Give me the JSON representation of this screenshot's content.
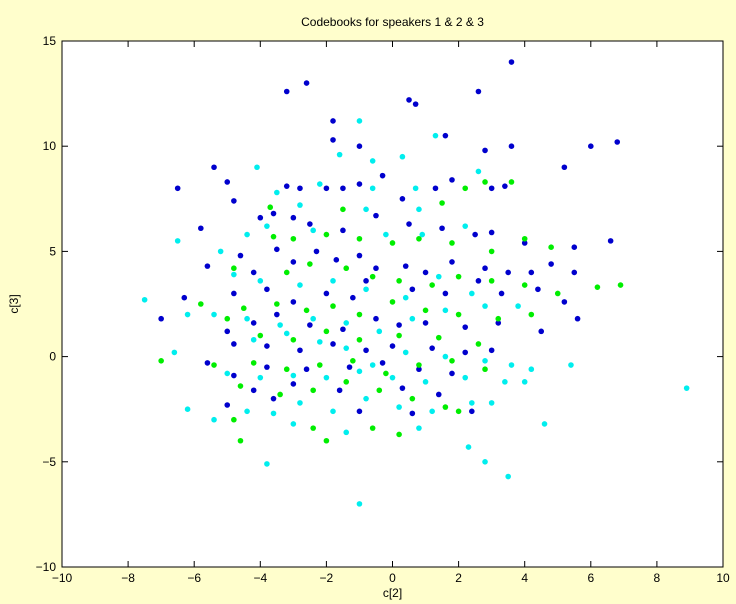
{
  "chart_data": {
    "type": "scatter",
    "title": "Codebooks for speakers 1 & 2 & 3",
    "xlabel": "c[2]",
    "ylabel": "c[3]",
    "xlim": [
      -10,
      10
    ],
    "ylim": [
      -10,
      15
    ],
    "xticks": [
      -10,
      -8,
      -6,
      -4,
      -2,
      0,
      2,
      4,
      6,
      8,
      10
    ],
    "yticks": [
      -10,
      -5,
      0,
      5,
      10,
      15
    ],
    "grid": false,
    "legend": "none",
    "series": [
      {
        "color": "#0000cd",
        "points": [
          [
            -3.2,
            12.6
          ],
          [
            -2.6,
            13.0
          ],
          [
            -1.8,
            11.2
          ],
          [
            0.5,
            12.2
          ],
          [
            0.7,
            12.0
          ],
          [
            2.6,
            12.6
          ],
          [
            3.6,
            14.0
          ],
          [
            -5.4,
            9.0
          ],
          [
            -6.5,
            8.0
          ],
          [
            -1.8,
            10.3
          ],
          [
            -1.0,
            10.0
          ],
          [
            1.6,
            10.5
          ],
          [
            2.8,
            9.8
          ],
          [
            3.6,
            10.0
          ],
          [
            5.2,
            9.0
          ],
          [
            6.0,
            10.0
          ],
          [
            6.8,
            10.2
          ],
          [
            -5.0,
            8.3
          ],
          [
            -4.8,
            7.4
          ],
          [
            -3.2,
            8.1
          ],
          [
            -2.8,
            8.0
          ],
          [
            -2.0,
            8.0
          ],
          [
            -1.5,
            8.0
          ],
          [
            -1.0,
            8.2
          ],
          [
            -0.3,
            8.6
          ],
          [
            0.3,
            7.5
          ],
          [
            1.3,
            8.0
          ],
          [
            1.8,
            8.4
          ],
          [
            3.0,
            8.0
          ],
          [
            3.4,
            8.1
          ],
          [
            -5.8,
            6.1
          ],
          [
            -4.0,
            6.6
          ],
          [
            -3.6,
            6.8
          ],
          [
            -3.0,
            6.6
          ],
          [
            -2.5,
            6.3
          ],
          [
            -1.5,
            6.0
          ],
          [
            -0.5,
            6.7
          ],
          [
            0.5,
            6.3
          ],
          [
            1.5,
            6.1
          ],
          [
            2.5,
            5.8
          ],
          [
            3.0,
            5.9
          ],
          [
            4.0,
            5.4
          ],
          [
            5.5,
            5.2
          ],
          [
            6.6,
            5.5
          ],
          [
            -5.6,
            4.3
          ],
          [
            -4.6,
            4.8
          ],
          [
            -4.2,
            4.0
          ],
          [
            -3.5,
            5.1
          ],
          [
            -3.0,
            4.5
          ],
          [
            -2.3,
            5.0
          ],
          [
            -1.7,
            4.6
          ],
          [
            -1.0,
            4.8
          ],
          [
            -0.5,
            4.2
          ],
          [
            0.4,
            4.3
          ],
          [
            1.0,
            4.0
          ],
          [
            1.8,
            4.5
          ],
          [
            2.8,
            4.2
          ],
          [
            3.5,
            4.0
          ],
          [
            4.2,
            4.0
          ],
          [
            4.8,
            4.4
          ],
          [
            5.5,
            4.0
          ],
          [
            -6.3,
            2.8
          ],
          [
            -4.8,
            3.0
          ],
          [
            -3.8,
            3.2
          ],
          [
            -3.0,
            2.6
          ],
          [
            -2.0,
            3.0
          ],
          [
            -1.2,
            2.8
          ],
          [
            -0.8,
            3.6
          ],
          [
            0.6,
            3.2
          ],
          [
            1.6,
            3.0
          ],
          [
            2.6,
            3.6
          ],
          [
            3.3,
            3.0
          ],
          [
            4.4,
            3.2
          ],
          [
            5.2,
            2.6
          ],
          [
            -7.0,
            1.8
          ],
          [
            -5.0,
            1.2
          ],
          [
            -4.2,
            1.6
          ],
          [
            -3.5,
            2.0
          ],
          [
            -2.5,
            1.5
          ],
          [
            -1.5,
            1.3
          ],
          [
            -0.5,
            1.8
          ],
          [
            0.2,
            1.5
          ],
          [
            1.0,
            1.6
          ],
          [
            2.2,
            1.4
          ],
          [
            3.2,
            1.6
          ],
          [
            4.5,
            1.2
          ],
          [
            5.6,
            1.8
          ],
          [
            -4.8,
            0.6
          ],
          [
            -3.8,
            0.5
          ],
          [
            -2.8,
            0.3
          ],
          [
            -1.8,
            0.6
          ],
          [
            -0.8,
            0.3
          ],
          [
            0.0,
            0.5
          ],
          [
            1.2,
            0.4
          ],
          [
            2.2,
            0.2
          ],
          [
            3.0,
            0.3
          ],
          [
            -5.6,
            -0.3
          ],
          [
            -4.8,
            -0.9
          ],
          [
            -3.8,
            -0.5
          ],
          [
            -2.6,
            -0.6
          ],
          [
            -1.3,
            -0.5
          ],
          [
            -0.3,
            -0.3
          ],
          [
            0.8,
            -0.6
          ],
          [
            1.8,
            -0.8
          ],
          [
            -4.2,
            -1.6
          ],
          [
            -3.0,
            -1.3
          ],
          [
            -1.6,
            -1.6
          ],
          [
            0.3,
            -1.5
          ],
          [
            1.4,
            -1.8
          ],
          [
            -5.0,
            -2.3
          ],
          [
            -3.6,
            -2.0
          ],
          [
            -1.0,
            -2.6
          ],
          [
            0.6,
            -2.7
          ],
          [
            2.4,
            -2.6
          ]
        ]
      },
      {
        "color": "#00ee00",
        "points": [
          [
            -3.7,
            7.1
          ],
          [
            -1.5,
            7.0
          ],
          [
            1.5,
            7.3
          ],
          [
            2.2,
            8.0
          ],
          [
            2.8,
            8.3
          ],
          [
            3.6,
            8.3
          ],
          [
            -3.6,
            5.7
          ],
          [
            -3.0,
            5.6
          ],
          [
            -2.0,
            5.8
          ],
          [
            -1.0,
            5.6
          ],
          [
            0.0,
            5.4
          ],
          [
            0.8,
            5.6
          ],
          [
            1.8,
            5.4
          ],
          [
            3.0,
            5.0
          ],
          [
            4.0,
            5.6
          ],
          [
            4.8,
            5.2
          ],
          [
            -4.8,
            4.2
          ],
          [
            -3.2,
            4.0
          ],
          [
            -2.5,
            4.4
          ],
          [
            -1.4,
            4.2
          ],
          [
            -0.6,
            3.8
          ],
          [
            0.2,
            3.6
          ],
          [
            1.2,
            3.4
          ],
          [
            2.0,
            3.8
          ],
          [
            3.0,
            3.6
          ],
          [
            4.0,
            3.4
          ],
          [
            5.0,
            3.0
          ],
          [
            6.2,
            3.3
          ],
          [
            6.9,
            3.4
          ],
          [
            -5.8,
            2.5
          ],
          [
            -4.5,
            2.3
          ],
          [
            -3.5,
            2.5
          ],
          [
            -2.6,
            2.2
          ],
          [
            -1.8,
            2.4
          ],
          [
            -1.0,
            2.0
          ],
          [
            0.0,
            2.6
          ],
          [
            1.0,
            2.2
          ],
          [
            2.0,
            2.0
          ],
          [
            3.2,
            1.8
          ],
          [
            4.2,
            2.0
          ],
          [
            -5.0,
            1.8
          ],
          [
            -4.0,
            1.0
          ],
          [
            -3.0,
            0.8
          ],
          [
            -2.0,
            1.2
          ],
          [
            -1.0,
            0.8
          ],
          [
            0.2,
            1.0
          ],
          [
            1.4,
            0.9
          ],
          [
            2.6,
            0.6
          ],
          [
            -7.0,
            -0.2
          ],
          [
            -5.4,
            -0.4
          ],
          [
            -4.2,
            -0.3
          ],
          [
            -3.2,
            -0.6
          ],
          [
            -2.2,
            -0.4
          ],
          [
            -1.2,
            -0.2
          ],
          [
            -0.2,
            -0.8
          ],
          [
            0.8,
            -0.4
          ],
          [
            1.8,
            -0.2
          ],
          [
            2.8,
            -0.6
          ],
          [
            -4.6,
            -1.4
          ],
          [
            -3.4,
            -1.8
          ],
          [
            -2.4,
            -1.6
          ],
          [
            -1.4,
            -1.2
          ],
          [
            -0.4,
            -1.6
          ],
          [
            0.6,
            -2.0
          ],
          [
            1.6,
            -2.4
          ],
          [
            -4.8,
            -3.0
          ],
          [
            -4.6,
            -4.0
          ],
          [
            -2.4,
            -3.4
          ],
          [
            -2.0,
            -4.0
          ],
          [
            -0.6,
            -3.4
          ],
          [
            0.2,
            -3.7
          ],
          [
            2.0,
            -2.6
          ]
        ]
      },
      {
        "color": "#00eeee",
        "points": [
          [
            -1.0,
            11.2
          ],
          [
            1.3,
            10.5
          ],
          [
            -1.6,
            9.6
          ],
          [
            -0.6,
            9.3
          ],
          [
            0.3,
            9.5
          ],
          [
            -4.1,
            9.0
          ],
          [
            -2.2,
            8.2
          ],
          [
            -0.6,
            8.0
          ],
          [
            0.7,
            8.0
          ],
          [
            2.6,
            8.8
          ],
          [
            -3.5,
            7.8
          ],
          [
            -2.8,
            7.2
          ],
          [
            -0.8,
            7.0
          ],
          [
            0.8,
            7.0
          ],
          [
            -6.5,
            5.5
          ],
          [
            -5.2,
            5.0
          ],
          [
            -4.4,
            5.8
          ],
          [
            -3.8,
            6.2
          ],
          [
            -2.4,
            6.0
          ],
          [
            -0.2,
            5.8
          ],
          [
            0.9,
            5.8
          ],
          [
            2.2,
            6.2
          ],
          [
            -4.8,
            3.9
          ],
          [
            -4.0,
            3.6
          ],
          [
            -2.8,
            3.4
          ],
          [
            -1.8,
            3.6
          ],
          [
            -0.8,
            3.2
          ],
          [
            0.4,
            2.8
          ],
          [
            1.4,
            3.8
          ],
          [
            2.4,
            3.0
          ],
          [
            -7.5,
            2.7
          ],
          [
            -6.2,
            2.0
          ],
          [
            -5.4,
            2.0
          ],
          [
            -4.4,
            1.8
          ],
          [
            -3.4,
            1.5
          ],
          [
            -2.4,
            1.8
          ],
          [
            -1.4,
            1.6
          ],
          [
            -0.4,
            1.2
          ],
          [
            0.6,
            1.8
          ],
          [
            1.6,
            2.2
          ],
          [
            2.8,
            2.4
          ],
          [
            3.8,
            2.4
          ],
          [
            -4.2,
            0.8
          ],
          [
            -3.2,
            1.1
          ],
          [
            -2.2,
            0.7
          ],
          [
            -1.4,
            0.4
          ],
          [
            -0.6,
            -0.4
          ],
          [
            0.4,
            0.2
          ],
          [
            1.6,
            0.0
          ],
          [
            2.8,
            -0.2
          ],
          [
            3.6,
            -0.4
          ],
          [
            4.2,
            -0.6
          ],
          [
            5.4,
            -0.4
          ],
          [
            -6.6,
            0.2
          ],
          [
            -5.0,
            -0.8
          ],
          [
            -4.0,
            -1.0
          ],
          [
            -3.0,
            -0.9
          ],
          [
            -2.0,
            -1.0
          ],
          [
            -1.0,
            -0.7
          ],
          [
            0.0,
            -1.0
          ],
          [
            1.0,
            -1.2
          ],
          [
            2.2,
            -1.0
          ],
          [
            3.4,
            -1.2
          ],
          [
            4.0,
            -1.2
          ],
          [
            -6.2,
            -2.5
          ],
          [
            -5.4,
            -3.0
          ],
          [
            -4.4,
            -2.6
          ],
          [
            -3.6,
            -2.7
          ],
          [
            -2.8,
            -2.2
          ],
          [
            -1.8,
            -2.6
          ],
          [
            -0.8,
            -2.0
          ],
          [
            0.2,
            -2.4
          ],
          [
            1.2,
            -2.6
          ],
          [
            2.4,
            -2.2
          ],
          [
            3.0,
            -2.2
          ],
          [
            -3.0,
            -3.2
          ],
          [
            -1.4,
            -3.6
          ],
          [
            0.8,
            -3.4
          ],
          [
            4.6,
            -3.2
          ],
          [
            -3.8,
            -5.1
          ],
          [
            2.3,
            -4.3
          ],
          [
            2.8,
            -5.0
          ],
          [
            3.5,
            -5.7
          ],
          [
            -1.0,
            -7.0
          ],
          [
            8.9,
            -1.5
          ]
        ]
      }
    ]
  }
}
